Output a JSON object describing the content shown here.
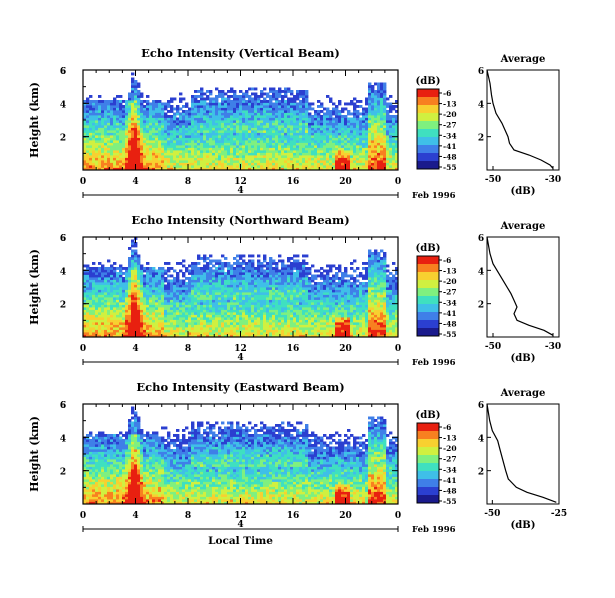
{
  "chart_data": [
    {
      "type": "heatmap",
      "title": "Echo Intensity (Vertical Beam)",
      "ylabel": "Height (km)",
      "yticks": [
        "2",
        "4",
        "6"
      ],
      "ylim": [
        0,
        6
      ],
      "xticks": [
        "0",
        "4",
        "8",
        "12",
        "16",
        "20",
        "0"
      ],
      "date_label": "Feb 1996",
      "day_label": "4",
      "colorbar": {
        "unit": "(dB)",
        "ticks": [
          "-6",
          "-13",
          "-20",
          "-27",
          "-34",
          "-41",
          "-48",
          "-55"
        ]
      },
      "profile": {
        "title": "Average",
        "xlabel": "(dB)",
        "xticks": [
          "-50",
          "-30"
        ],
        "xlim": [
          -52,
          -28
        ],
        "yticks": [
          "2",
          "4",
          "6"
        ],
        "points": [
          [
            -52,
            6.0
          ],
          [
            -51,
            5.2
          ],
          [
            -50.5,
            4.5
          ],
          [
            -50,
            4.0
          ],
          [
            -49,
            3.4
          ],
          [
            -47,
            2.8
          ],
          [
            -46,
            2.4
          ],
          [
            -45,
            2.0
          ],
          [
            -44.5,
            1.6
          ],
          [
            -43,
            1.2
          ],
          [
            -38,
            0.9
          ],
          [
            -34,
            0.6
          ],
          [
            -31,
            0.3
          ],
          [
            -30,
            0.1
          ]
        ]
      }
    },
    {
      "type": "heatmap",
      "title": "Echo Intensity (Northward Beam)",
      "ylabel": "Height (km)",
      "yticks": [
        "2",
        "4",
        "6"
      ],
      "ylim": [
        0,
        6
      ],
      "xticks": [
        "0",
        "4",
        "8",
        "12",
        "16",
        "20",
        "0"
      ],
      "date_label": "Feb 1996",
      "day_label": "4",
      "colorbar": {
        "unit": "(dB)",
        "ticks": [
          "-6",
          "-13",
          "-20",
          "-27",
          "-34",
          "-41",
          "-48",
          "-55"
        ]
      },
      "profile": {
        "title": "Average",
        "xlabel": "(dB)",
        "xticks": [
          "-50",
          "-30"
        ],
        "xlim": [
          -52,
          -28
        ],
        "yticks": [
          "2",
          "4",
          "6"
        ],
        "points": [
          [
            -52,
            6.0
          ],
          [
            -51,
            5.0
          ],
          [
            -50,
            4.4
          ],
          [
            -48,
            3.8
          ],
          [
            -46,
            3.2
          ],
          [
            -44,
            2.6
          ],
          [
            -43,
            2.2
          ],
          [
            -42,
            1.8
          ],
          [
            -43,
            1.4
          ],
          [
            -42,
            1.0
          ],
          [
            -38,
            0.7
          ],
          [
            -33,
            0.4
          ],
          [
            -30,
            0.1
          ]
        ]
      }
    },
    {
      "type": "heatmap",
      "title": "Echo Intensity (Eastward Beam)",
      "ylabel": "Height (km)",
      "yticks": [
        "2",
        "4",
        "6"
      ],
      "ylim": [
        0,
        6
      ],
      "xticks": [
        "0",
        "4",
        "8",
        "12",
        "16",
        "20",
        "0"
      ],
      "date_label": "Feb 1996",
      "day_label": "4",
      "xlabel": "Local Time",
      "colorbar": {
        "unit": "(dB)",
        "ticks": [
          "-6",
          "-13",
          "-20",
          "-27",
          "-34",
          "-41",
          "-48",
          "-55"
        ]
      },
      "profile": {
        "title": "Average",
        "xlabel": "(dB)",
        "xticks": [
          "-50",
          "-25"
        ],
        "xlim": [
          -52,
          -25
        ],
        "yticks": [
          "2",
          "4",
          "6"
        ],
        "points": [
          [
            -52,
            6.0
          ],
          [
            -51,
            5.0
          ],
          [
            -50,
            4.4
          ],
          [
            -48,
            3.8
          ],
          [
            -47,
            3.2
          ],
          [
            -46,
            2.6
          ],
          [
            -45,
            2.0
          ],
          [
            -44,
            1.5
          ],
          [
            -41,
            1.0
          ],
          [
            -37,
            0.7
          ],
          [
            -31,
            0.4
          ],
          [
            -26,
            0.1
          ]
        ]
      }
    }
  ],
  "colors": {
    "scale": [
      "#1a1a8c",
      "#2b3fd0",
      "#3f7fe8",
      "#3fbfe8",
      "#3fe0c0",
      "#7ff07f",
      "#d0f040",
      "#f8d030",
      "#f88020",
      "#e82010"
    ],
    "axis": "#000000"
  }
}
